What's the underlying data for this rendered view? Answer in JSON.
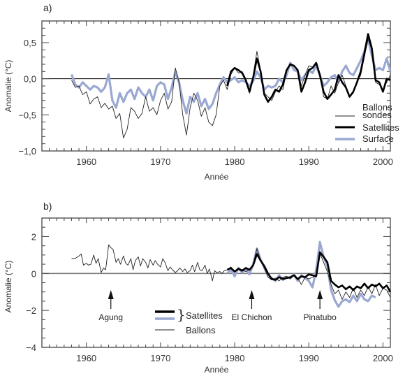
{
  "colors": {
    "ballons": "#222222",
    "satellites": "#000000",
    "surface": "#9aa8d2",
    "axis": "#444444",
    "zero_line": "#000000",
    "zero_line_b": "#777777"
  },
  "chart_data": [
    {
      "type": "line",
      "panel_label": "a)",
      "title": "",
      "xlabel": "Année",
      "ylabel": "Anomalie (°C)",
      "xlim": [
        1954,
        2001
      ],
      "ylim": [
        -1.0,
        0.8
      ],
      "xticks": [
        1960,
        1970,
        1980,
        1990,
        2000
      ],
      "xtick_labels": [
        "1960",
        "1970",
        "1980",
        "1990",
        "2000"
      ],
      "yticks": [
        0.5,
        0.0,
        -0.5,
        -1.0
      ],
      "ytick_labels": [
        "0,5",
        "0,0",
        "−0,5",
        "−1,0"
      ],
      "legend": {
        "placement": "bottom-right",
        "entries": [
          "Ballons sondes",
          "Satellites",
          "Surface"
        ]
      },
      "series": [
        {
          "name": "Ballons sondes",
          "x": [
            1958.0,
            1958.5,
            1959.0,
            1959.5,
            1960.0,
            1960.5,
            1961.0,
            1961.5,
            1962.0,
            1962.5,
            1963.0,
            1963.5,
            1964.0,
            1964.5,
            1965.0,
            1965.5,
            1966.0,
            1966.5,
            1967.0,
            1967.5,
            1968.0,
            1968.5,
            1969.0,
            1969.5,
            1970.0,
            1970.5,
            1971.0,
            1971.5,
            1972.0,
            1972.5,
            1973.0,
            1973.5,
            1974.0,
            1974.5,
            1975.0,
            1975.5,
            1976.0,
            1976.5,
            1977.0,
            1977.5,
            1978.0,
            1978.5,
            1979.0,
            1979.5,
            1980.0,
            1980.5,
            1981.0,
            1981.5,
            1982.0,
            1982.5,
            1983.0,
            1983.5,
            1984.0,
            1984.5,
            1985.0,
            1985.5,
            1986.0,
            1986.5,
            1987.0,
            1987.5,
            1988.0,
            1988.5,
            1989.0,
            1989.5,
            1990.0,
            1990.5,
            1991.0,
            1991.5,
            1992.0,
            1992.5,
            1993.0,
            1993.5,
            1994.0,
            1994.5,
            1995.0,
            1995.5,
            1996.0,
            1996.5,
            1997.0,
            1997.5,
            1998.0,
            1998.5,
            1999.0,
            1999.5,
            2000.0,
            2000.5,
            2001.0
          ],
          "values": [
            -0.02,
            -0.12,
            -0.1,
            -0.22,
            -0.18,
            -0.35,
            -0.28,
            -0.25,
            -0.4,
            -0.34,
            -0.42,
            -0.38,
            -0.55,
            -0.48,
            -0.82,
            -0.7,
            -0.4,
            -0.45,
            -0.55,
            -0.48,
            -0.25,
            -0.45,
            -0.4,
            -0.5,
            -0.3,
            -0.2,
            -0.42,
            -0.32,
            0.15,
            -0.05,
            -0.5,
            -0.78,
            -0.4,
            -0.2,
            -0.3,
            -0.52,
            -0.4,
            -0.6,
            -0.65,
            -0.5,
            -0.1,
            -0.02,
            -0.15,
            0.06,
            0.15,
            0.08,
            0.1,
            0.0,
            -0.2,
            0.05,
            0.38,
            0.12,
            -0.2,
            -0.25,
            -0.3,
            -0.18,
            -0.1,
            -0.15,
            0.1,
            0.2,
            0.18,
            0.1,
            -0.1,
            0.05,
            0.18,
            0.16,
            0.2,
            0.05,
            -0.25,
            -0.28,
            -0.1,
            -0.2,
            -0.05,
            0.05,
            -0.1,
            -0.25,
            -0.2,
            -0.05,
            0.05,
            0.3,
            0.55,
            0.4,
            -0.05,
            -0.08,
            -0.15,
            -0.05,
            0.05
          ]
        },
        {
          "name": "Satellites",
          "x": [
            1979.0,
            1979.5,
            1980.0,
            1980.5,
            1981.0,
            1981.5,
            1982.0,
            1982.5,
            1983.0,
            1983.5,
            1984.0,
            1984.5,
            1985.0,
            1985.5,
            1986.0,
            1986.5,
            1987.0,
            1987.5,
            1988.0,
            1988.5,
            1989.0,
            1989.5,
            1990.0,
            1990.5,
            1991.0,
            1991.5,
            1992.0,
            1992.5,
            1993.0,
            1993.5,
            1994.0,
            1994.5,
            1995.0,
            1995.5,
            1996.0,
            1996.5,
            1997.0,
            1997.5,
            1998.0,
            1998.5,
            1999.0,
            1999.5,
            2000.0,
            2000.5,
            2001.0
          ],
          "values": [
            -0.1,
            0.1,
            0.15,
            0.12,
            0.08,
            -0.02,
            -0.18,
            0.02,
            0.28,
            0.1,
            -0.22,
            -0.32,
            -0.25,
            -0.15,
            -0.18,
            -0.08,
            0.12,
            0.2,
            0.18,
            0.12,
            -0.18,
            -0.05,
            0.12,
            0.15,
            0.22,
            0.05,
            -0.18,
            -0.28,
            -0.22,
            -0.15,
            0.05,
            -0.05,
            -0.12,
            -0.25,
            -0.18,
            -0.05,
            0.1,
            0.35,
            0.62,
            0.42,
            -0.02,
            -0.05,
            -0.18,
            0.0,
            -0.02
          ]
        },
        {
          "name": "Surface",
          "x": [
            1958.0,
            1958.5,
            1959.0,
            1959.5,
            1960.0,
            1960.5,
            1961.0,
            1961.5,
            1962.0,
            1962.5,
            1963.0,
            1963.5,
            1964.0,
            1964.5,
            1965.0,
            1965.5,
            1966.0,
            1966.5,
            1967.0,
            1967.5,
            1968.0,
            1968.5,
            1969.0,
            1969.5,
            1970.0,
            1970.5,
            1971.0,
            1971.5,
            1972.0,
            1972.5,
            1973.0,
            1973.5,
            1974.0,
            1974.5,
            1975.0,
            1975.5,
            1976.0,
            1976.5,
            1977.0,
            1977.5,
            1978.0,
            1978.5,
            1979.0,
            1979.5,
            1980.0,
            1980.5,
            1981.0,
            1981.5,
            1982.0,
            1982.5,
            1983.0,
            1983.5,
            1984.0,
            1984.5,
            1985.0,
            1985.5,
            1986.0,
            1986.5,
            1987.0,
            1987.5,
            1988.0,
            1988.5,
            1989.0,
            1989.5,
            1990.0,
            1990.5,
            1991.0,
            1991.5,
            1992.0,
            1992.5,
            1993.0,
            1993.5,
            1994.0,
            1994.5,
            1995.0,
            1995.5,
            1996.0,
            1996.5,
            1997.0,
            1997.5,
            1998.0,
            1998.5,
            1999.0,
            1999.5,
            2000.0,
            2000.5,
            2001.0
          ],
          "values": [
            0.06,
            -0.08,
            -0.12,
            -0.05,
            -0.1,
            -0.15,
            -0.1,
            -0.12,
            -0.18,
            -0.12,
            0.06,
            -0.3,
            -0.4,
            -0.2,
            -0.32,
            -0.2,
            -0.15,
            -0.28,
            -0.12,
            -0.2,
            -0.25,
            -0.15,
            -0.3,
            -0.1,
            -0.05,
            -0.08,
            -0.28,
            -0.12,
            0.1,
            -0.05,
            -0.3,
            -0.48,
            -0.25,
            -0.32,
            -0.2,
            -0.38,
            -0.28,
            -0.42,
            -0.35,
            -0.2,
            -0.08,
            0.02,
            -0.05,
            -0.02,
            0.02,
            -0.05,
            -0.02,
            -0.05,
            -0.1,
            -0.03,
            0.1,
            0.02,
            -0.15,
            -0.1,
            -0.12,
            -0.1,
            0.0,
            -0.05,
            0.05,
            0.22,
            0.12,
            0.1,
            -0.02,
            0.05,
            0.12,
            0.08,
            0.18,
            0.05,
            -0.1,
            -0.05,
            0.02,
            0.05,
            -0.05,
            0.1,
            0.18,
            0.08,
            0.05,
            0.15,
            0.25,
            0.38,
            0.55,
            0.32,
            0.12,
            0.15,
            0.12,
            0.28,
            0.1
          ]
        }
      ]
    },
    {
      "type": "line",
      "panel_label": "b)",
      "title": "",
      "xlabel": "Année",
      "ylabel": "Anomalie (°C)",
      "xlim": [
        1954,
        2001
      ],
      "ylim": [
        -4,
        3
      ],
      "xticks": [
        1960,
        1970,
        1980,
        1990,
        2000
      ],
      "xtick_labels": [
        "1960",
        "1970",
        "1980",
        "1990",
        "2000"
      ],
      "yticks": [
        2,
        0,
        -2,
        -4
      ],
      "ytick_labels": [
        "2",
        "0",
        "−2",
        "−4"
      ],
      "legend": {
        "placement": "bottom-center",
        "entries": [
          "Satellites",
          "Ballons"
        ],
        "bracket_label": "Satellites"
      },
      "annotations": [
        {
          "text": "Agung",
          "x": 1963.3
        },
        {
          "text": "El Chichon",
          "x": 1982.3
        },
        {
          "text": "Pinatubo",
          "x": 1991.5
        }
      ],
      "series": [
        {
          "name": "Ballons",
          "x": [
            1958.0,
            1958.5,
            1959.0,
            1959.3,
            1959.6,
            1960.0,
            1960.3,
            1960.6,
            1961.0,
            1961.3,
            1961.6,
            1962.0,
            1962.3,
            1962.6,
            1963.0,
            1963.3,
            1963.6,
            1964.0,
            1964.3,
            1964.6,
            1965.0,
            1965.3,
            1965.6,
            1966.0,
            1966.3,
            1966.6,
            1967.0,
            1967.3,
            1967.6,
            1968.0,
            1968.3,
            1968.6,
            1969.0,
            1969.3,
            1969.6,
            1970.0,
            1970.3,
            1970.6,
            1971.0,
            1971.3,
            1971.6,
            1972.0,
            1972.3,
            1972.6,
            1973.0,
            1973.3,
            1973.6,
            1974.0,
            1974.3,
            1974.6,
            1975.0,
            1975.3,
            1975.6,
            1976.0,
            1976.3,
            1976.6,
            1977.0,
            1977.3,
            1977.6,
            1978.0,
            1978.3,
            1978.6,
            1979.0,
            1979.5,
            1980.0,
            1980.5,
            1981.0,
            1981.5,
            1982.0,
            1982.5,
            1983.0,
            1983.5,
            1984.0,
            1984.5,
            1985.0,
            1985.5,
            1986.0,
            1986.5,
            1987.0,
            1987.5,
            1988.0,
            1988.5,
            1989.0,
            1989.5,
            1990.0,
            1990.5,
            1991.0,
            1991.5,
            1992.0,
            1992.5,
            1993.0,
            1993.5,
            1994.0,
            1994.5,
            1995.0,
            1995.5,
            1996.0,
            1996.5,
            1997.0,
            1997.5,
            1998.0,
            1998.5,
            1999.0,
            1999.5,
            2000.0,
            2000.5,
            2001.0
          ],
          "values": [
            0.8,
            0.82,
            0.95,
            1.05,
            0.45,
            0.55,
            0.45,
            0.5,
            1.0,
            0.55,
            0.8,
            0.05,
            0.3,
            0.2,
            1.55,
            1.4,
            1.3,
            0.6,
            0.8,
            0.5,
            0.95,
            0.55,
            0.45,
            0.8,
            0.2,
            0.7,
            0.9,
            0.4,
            0.8,
            0.6,
            0.3,
            0.75,
            0.45,
            0.7,
            0.5,
            0.35,
            0.8,
            0.6,
            0.15,
            0.35,
            0.2,
            0.05,
            0.15,
            0.3,
            0.1,
            0.25,
            0.05,
            0.15,
            0.45,
            0.1,
            0.6,
            0.2,
            0.15,
            0.45,
            0.0,
            0.25,
            -0.4,
            0.15,
            0.05,
            0.1,
            0.0,
            0.15,
            0.2,
            0.35,
            0.1,
            0.3,
            0.2,
            0.1,
            0.2,
            0.5,
            1.35,
            0.7,
            0.3,
            -0.2,
            -0.35,
            -0.25,
            -0.4,
            -0.2,
            -0.15,
            -0.3,
            -0.1,
            -0.25,
            -0.6,
            -0.2,
            -0.3,
            -0.2,
            -0.1,
            1.1,
            0.6,
            0.1,
            -0.6,
            -1.1,
            -0.9,
            -1.4,
            -1.0,
            -1.3,
            -0.8,
            -1.3,
            -0.9,
            -1.2,
            -0.7,
            -1.1,
            -0.6,
            -1.2,
            -0.8,
            -0.9,
            -1.3
          ]
        },
        {
          "name": "Satellites (1)",
          "x": [
            1979.0,
            1979.5,
            1980.0,
            1980.5,
            1981.0,
            1981.5,
            1982.0,
            1982.5,
            1983.0,
            1983.5,
            1984.0,
            1984.5,
            1985.0,
            1985.5,
            1986.0,
            1986.5,
            1987.0,
            1987.5,
            1988.0,
            1988.5,
            1989.0,
            1989.5,
            1990.0,
            1990.5,
            1991.0,
            1991.5,
            1992.0,
            1992.5,
            1993.0,
            1993.5,
            1994.0,
            1994.5,
            1995.0,
            1995.5,
            1996.0,
            1996.5,
            1997.0,
            1997.5,
            1998.0,
            1998.5,
            1999.0,
            1999.5,
            2000.0,
            2000.5,
            2001.0
          ],
          "values": [
            0.2,
            0.3,
            0.1,
            0.25,
            0.15,
            0.3,
            0.2,
            0.45,
            1.05,
            0.7,
            0.4,
            0.0,
            -0.3,
            -0.35,
            -0.2,
            -0.3,
            -0.25,
            -0.2,
            -0.1,
            -0.3,
            -0.15,
            -0.2,
            -0.05,
            -0.1,
            -0.15,
            1.15,
            0.9,
            0.6,
            -0.4,
            -0.6,
            -0.75,
            -0.65,
            -0.85,
            -0.7,
            -0.9,
            -0.7,
            -0.8,
            -0.55,
            -0.8,
            -0.6,
            -0.7,
            -0.55,
            -0.8,
            -0.65,
            -1.0
          ]
        },
        {
          "name": "Satellites (2)",
          "x": [
            1979.0,
            1979.5,
            1980.0,
            1980.5,
            1981.0,
            1981.5,
            1982.0,
            1982.5,
            1983.0,
            1983.5,
            1984.0,
            1984.5,
            1985.0,
            1985.5,
            1986.0,
            1986.5,
            1987.0,
            1987.5,
            1988.0,
            1988.5,
            1989.0,
            1989.5,
            1990.0,
            1990.5,
            1991.0,
            1991.5,
            1992.0,
            1992.5,
            1993.0,
            1993.5,
            1994.0,
            1994.5,
            1995.0,
            1995.5,
            1996.0,
            1996.5,
            1997.0,
            1997.5,
            1998.0,
            1998.5,
            1999.0,
            1999.5,
            2000.0,
            2000.5,
            2001.0
          ],
          "values": [
            0.0,
            0.2,
            -0.15,
            0.3,
            0.05,
            0.25,
            -0.05,
            0.5,
            1.35,
            0.75,
            0.3,
            -0.1,
            -0.25,
            -0.4,
            -0.1,
            -0.35,
            -0.2,
            -0.25,
            -0.05,
            -0.4,
            -0.1,
            -0.25,
            -0.4,
            -0.75,
            0.2,
            1.7,
            0.9,
            0.4,
            -0.9,
            -1.45,
            -1.8,
            -1.5,
            -1.4,
            -1.55,
            -1.2,
            -1.5,
            -1.1,
            -1.4,
            -1.5,
            -1.2,
            -1.3,
            null,
            null,
            null,
            null
          ]
        }
      ]
    }
  ]
}
